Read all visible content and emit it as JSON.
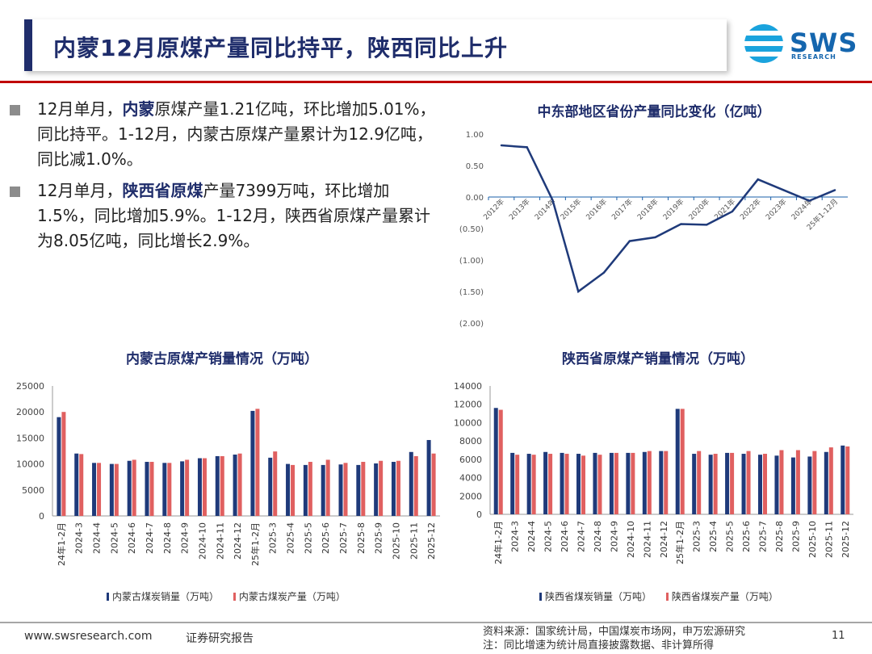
{
  "header": {
    "title": "内蒙12月原煤产量同比持平，陕西同比上升",
    "logo_text": "SWS",
    "logo_subtext": "RESEARCH"
  },
  "bullets": [
    {
      "pre": "12月单月，",
      "bold": "内蒙",
      "post": "原煤产量1.21亿吨，环比增加5.01%，同比持平。1-12月，内蒙古原煤产量累计为12.9亿吨，同比减1.0%。"
    },
    {
      "pre": "12月单月，",
      "bold": "陕西省原煤",
      "post": "产量7399万吨，环比增加1.5%，同比增加5.9%。1-12月，陕西省原煤产量累计为8.05亿吨，同比增长2.9%。"
    }
  ],
  "footer": {
    "url": "www.swsresearch.com",
    "report": "证券研究报告",
    "source_label": "资料来源：",
    "source": "国家统计局，中国煤炭市场网，申万宏源研究",
    "note": "注：同比增速为统计局直接披露数据、非计算所得",
    "page": "11"
  },
  "colors": {
    "navy": "#1f2d6b",
    "red_line": "#c00000",
    "series_sales": "#1f3a7a",
    "series_production": "#e06060",
    "line_series": "#1f3a7a"
  },
  "chart_data": [
    {
      "id": "line-yoy",
      "type": "line",
      "title": "中东部地区省份产量同比变化（亿吨）",
      "categories": [
        "2012年",
        "2013年",
        "2014年",
        "2015年",
        "2016年",
        "2017年",
        "2018年",
        "2019年",
        "2020年",
        "2021年",
        "2022年",
        "2023年",
        "2024年",
        "25年1-12月"
      ],
      "series": [
        {
          "name": "",
          "values": [
            0.82,
            0.79,
            -0.05,
            -1.5,
            -1.2,
            -0.7,
            -0.64,
            -0.43,
            -0.44,
            -0.23,
            0.28,
            0.11,
            -0.06,
            0.11
          ]
        }
      ],
      "ylim": [
        -2.0,
        1.0
      ],
      "yticks": [
        1.0,
        0.5,
        0.0,
        -0.5,
        -1.0,
        -1.5,
        -2.0
      ],
      "ytick_labels": [
        "1.00",
        "0.50",
        "0.00",
        "(0.50)",
        "(1.00)",
        "(1.50)",
        "(2.00)"
      ]
    },
    {
      "id": "bar-neimenggu",
      "type": "bar",
      "title": "内蒙古原煤产销量情况（万吨）",
      "categories": [
        "24年1-2月",
        "2024-3",
        "2024-4",
        "2024-5",
        "2024-6",
        "2024-7",
        "2024-8",
        "2024-9",
        "2024-10",
        "2024-11",
        "2024-12",
        "25年1-2月",
        "2025-3",
        "2025-4",
        "2025-5",
        "2025-6",
        "2025-7",
        "2025-8",
        "2025-9",
        "2025-10",
        "2025-11",
        "2025-12"
      ],
      "series": [
        {
          "name": "内蒙古煤炭销量（万吨）",
          "values": [
            19000,
            12000,
            10200,
            10000,
            10600,
            10400,
            10200,
            10500,
            11100,
            11500,
            11800,
            20200,
            11200,
            10000,
            9800,
            9800,
            9900,
            9800,
            10100,
            10400,
            12300,
            14600
          ]
        },
        {
          "name": "内蒙古煤炭产量（万吨）",
          "values": [
            20000,
            11900,
            10200,
            10000,
            10800,
            10400,
            10200,
            10800,
            11100,
            11500,
            12000,
            20600,
            12400,
            9800,
            10400,
            10800,
            10200,
            10400,
            10600,
            10600,
            11500,
            12000
          ]
        }
      ],
      "ylim": [
        0,
        25000
      ],
      "yticks": [
        0,
        5000,
        10000,
        15000,
        20000,
        25000
      ]
    },
    {
      "id": "bar-shaanxi",
      "type": "bar",
      "title": "陕西省原煤产销量情况（万吨）",
      "categories": [
        "24年1-2月",
        "2024-3",
        "2024-4",
        "2024-5",
        "2024-6",
        "2024-7",
        "2024-8",
        "2024-9",
        "2024-10",
        "2024-11",
        "2024-12",
        "25年1-2月",
        "2025-3",
        "2025-4",
        "2025-5",
        "2025-6",
        "2025-7",
        "2025-8",
        "2025-9",
        "2025-10",
        "2025-11",
        "2025-12"
      ],
      "series": [
        {
          "name": "陕西省煤炭销量（万吨）",
          "values": [
            11600,
            6700,
            6600,
            6800,
            6700,
            6600,
            6700,
            6700,
            6700,
            6800,
            6900,
            11500,
            6600,
            6500,
            6700,
            6600,
            6500,
            6400,
            6200,
            6300,
            6800,
            7500
          ]
        },
        {
          "name": "陕西省煤炭产量（万吨）",
          "values": [
            11400,
            6500,
            6500,
            6600,
            6600,
            6400,
            6500,
            6700,
            6700,
            6900,
            6900,
            11500,
            6900,
            6600,
            6700,
            6900,
            6600,
            7000,
            7000,
            6900,
            7300,
            7400
          ]
        }
      ],
      "ylim": [
        0,
        14000
      ],
      "yticks": [
        0,
        2000,
        4000,
        6000,
        8000,
        10000,
        12000,
        14000
      ]
    }
  ]
}
